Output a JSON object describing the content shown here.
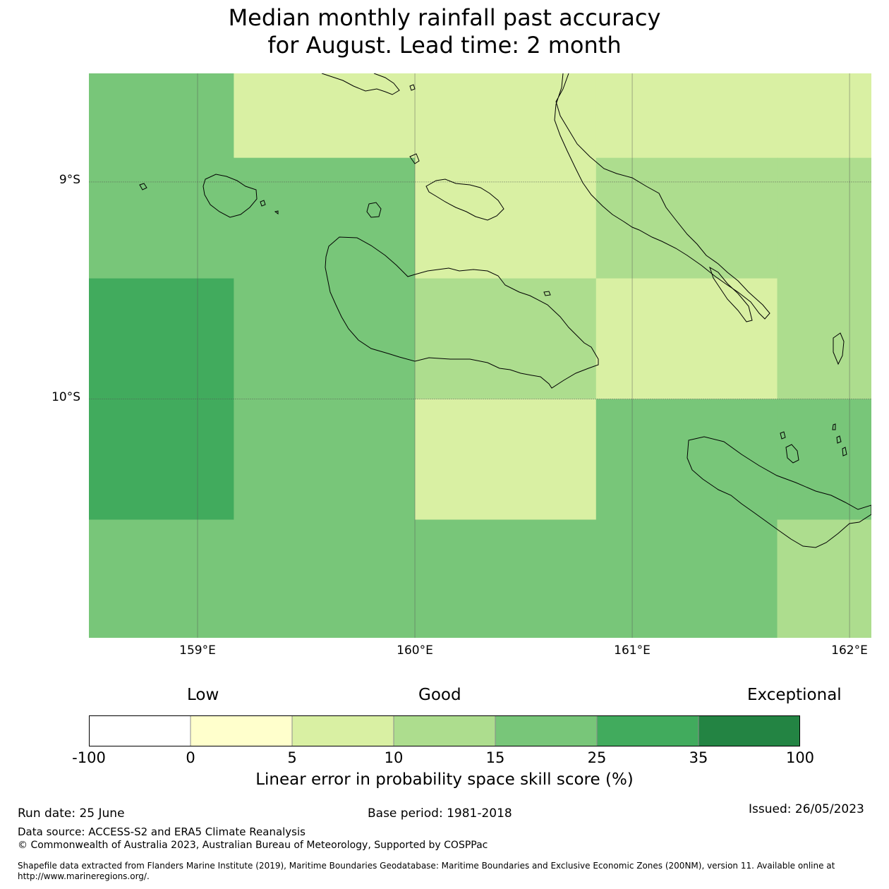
{
  "title": {
    "line1": "Median monthly rainfall past accuracy",
    "line2": "for August. Lead time: 2 month"
  },
  "map": {
    "lon_range": [
      158.5,
      162.1
    ],
    "lat_range": [
      -11.1,
      -8.5
    ],
    "lat_labels": [
      "9°S",
      "10°S"
    ],
    "lon_labels": [
      "159°E",
      "160°E",
      "161°E",
      "162°E"
    ],
    "grid_lats": [
      -9,
      -10
    ],
    "grid_lons": [
      159,
      160,
      161,
      162
    ],
    "cell_grid": {
      "lon_edges": [
        158.5,
        159.1667,
        160.0,
        160.8333,
        161.6667,
        162.1
      ],
      "lat_edges": [
        -8.5,
        -8.8889,
        -9.4444,
        -10.0,
        -10.5556,
        -11.1
      ],
      "categories_by_row": [
        [
          "15-25",
          "5-10",
          "5-10",
          "5-10",
          "5-10"
        ],
        [
          "15-25",
          "15-25",
          "5-10",
          "10-15",
          "10-15"
        ],
        [
          "25-35",
          "15-25",
          "10-15",
          "5-10",
          "10-15"
        ],
        [
          "25-35",
          "15-25",
          "5-10",
          "15-25",
          "15-25"
        ],
        [
          "15-25",
          "15-25",
          "15-25",
          "15-25",
          "10-15"
        ]
      ]
    },
    "colors": {
      "-100-0": "#ffffff",
      "0-5": "#ffffcc",
      "5-10": "#d9f0a3",
      "10-15": "#addd8e",
      "15-25": "#78c679",
      "25-35": "#41ab5d",
      "35-100": "#238443"
    }
  },
  "legend": {
    "categories": [
      "Low",
      "Good",
      "Exceptional"
    ],
    "ticks": [
      "-100",
      "0",
      "5",
      "10",
      "15",
      "25",
      "35",
      "100"
    ],
    "colors": [
      "#ffffff",
      "#ffffcc",
      "#d9f0a3",
      "#addd8e",
      "#78c679",
      "#41ab5d",
      "#238443"
    ],
    "title": "Linear error in probability space skill score (%)"
  },
  "footer": {
    "run_date": "Run date: 25 June",
    "base_period": "Base period: 1981-2018",
    "issued": "Issued: 26/05/2023",
    "data_source": "Data source: ACCESS-S2 and ERA5 Climate Reanalysis",
    "copyright": "© Commonwealth of Australia 2023, Australian Bureau of Meteorology, Supported by COSPPac",
    "shapefile_note": "Shapefile data extracted from Flanders Marine Institute (2019), Maritime Boundaries Geodatabase: Maritime Boundaries and Exclusive Economic Zones (200NM), version 11. Available online at http://www.marineregions.org/."
  }
}
